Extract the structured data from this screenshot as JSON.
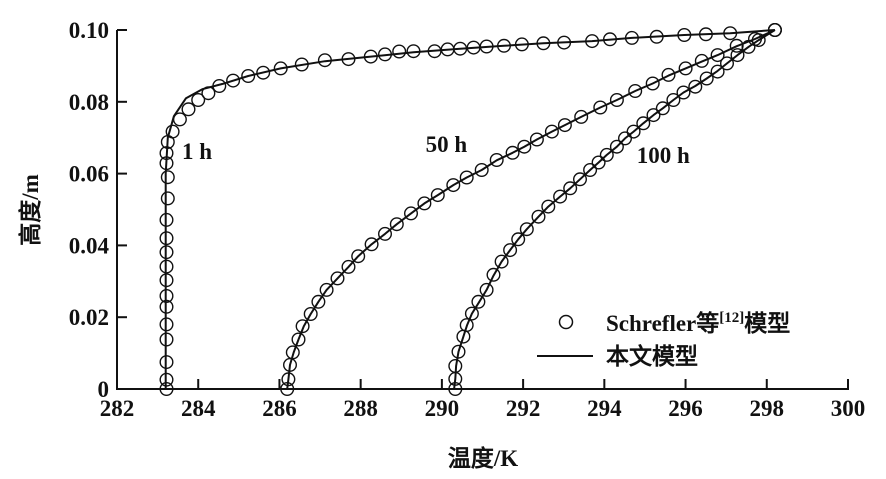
{
  "chart_data": {
    "type": "line",
    "title": "",
    "xlabel": "温度/K",
    "ylabel": "高度/m",
    "xlim": [
      282,
      300
    ],
    "ylim": [
      0,
      0.1
    ],
    "xticks": [
      "282",
      "284",
      "286",
      "288",
      "290",
      "292",
      "294",
      "296",
      "298",
      "300"
    ],
    "yticks": [
      "0",
      "0.02",
      "0.04",
      "0.06",
      "0.08",
      "0.10"
    ],
    "grid": false,
    "legend_position": "bottom-right",
    "legend": {
      "markers_label": "Schrefler等",
      "markers_ref": "[12]",
      "markers_suffix": "模型",
      "line_label": "本文模型"
    },
    "annotations": [
      {
        "text": "1 h",
        "x": 283.6,
        "y": 0.064
      },
      {
        "text": "50 h",
        "x": 289.6,
        "y": 0.066
      },
      {
        "text": "100 h",
        "x": 294.8,
        "y": 0.063
      }
    ],
    "series": [
      {
        "curve": "1 h",
        "model": [
          [
            283.2,
            0
          ],
          [
            283.2,
            0.03
          ],
          [
            283.2,
            0.06
          ],
          [
            283.25,
            0.07
          ],
          [
            283.4,
            0.076
          ],
          [
            283.7,
            0.081
          ],
          [
            284.1,
            0.0835
          ],
          [
            284.6,
            0.085
          ],
          [
            285.23,
            0.0872
          ],
          [
            286.03,
            0.0893
          ],
          [
            287.12,
            0.0913
          ],
          [
            288.25,
            0.0926
          ],
          [
            289.3,
            0.0938
          ],
          [
            290.45,
            0.0948
          ],
          [
            291.53,
            0.0956
          ],
          [
            292.5,
            0.0963
          ],
          [
            293.7,
            0.0969
          ],
          [
            294.68,
            0.0978
          ],
          [
            295.97,
            0.0986
          ],
          [
            297.1,
            0.0991
          ],
          [
            298.2,
            0.1
          ]
        ],
        "reference": [
          [
            283.22,
            0
          ],
          [
            283.22,
            0.0026
          ],
          [
            283.22,
            0.0075
          ],
          [
            283.22,
            0.0138
          ],
          [
            283.22,
            0.018
          ],
          [
            283.22,
            0.0229
          ],
          [
            283.22,
            0.0259
          ],
          [
            283.22,
            0.0303
          ],
          [
            283.22,
            0.0341
          ],
          [
            283.22,
            0.0381
          ],
          [
            283.22,
            0.042
          ],
          [
            283.22,
            0.0471
          ],
          [
            283.25,
            0.0531
          ],
          [
            283.25,
            0.059
          ],
          [
            283.22,
            0.0629
          ],
          [
            283.22,
            0.0657
          ],
          [
            283.25,
            0.0688
          ],
          [
            283.37,
            0.0717
          ],
          [
            283.55,
            0.0751
          ],
          [
            283.76,
            0.0779
          ],
          [
            284.0,
            0.0805
          ],
          [
            284.25,
            0.0824
          ],
          [
            284.52,
            0.0844
          ],
          [
            284.86,
            0.0859
          ],
          [
            285.23,
            0.0872
          ],
          [
            285.6,
            0.0881
          ],
          [
            286.03,
            0.0893
          ],
          [
            286.55,
            0.0904
          ],
          [
            287.12,
            0.0916
          ],
          [
            287.7,
            0.0919
          ],
          [
            288.25,
            0.0926
          ],
          [
            288.6,
            0.0932
          ],
          [
            288.95,
            0.094
          ],
          [
            289.3,
            0.0941
          ],
          [
            289.82,
            0.0941
          ],
          [
            290.14,
            0.0946
          ],
          [
            290.45,
            0.0948
          ],
          [
            290.78,
            0.0951
          ],
          [
            291.1,
            0.0954
          ],
          [
            291.53,
            0.0956
          ],
          [
            291.97,
            0.096
          ],
          [
            292.5,
            0.0963
          ],
          [
            293.01,
            0.0965
          ],
          [
            293.7,
            0.0969
          ],
          [
            294.14,
            0.0974
          ],
          [
            294.68,
            0.0978
          ],
          [
            295.29,
            0.0981
          ],
          [
            295.97,
            0.0986
          ],
          [
            296.5,
            0.0988
          ],
          [
            297.1,
            0.0991
          ],
          [
            298.2,
            0.1
          ]
        ]
      },
      {
        "curve": "50 h",
        "model": [
          [
            286.19,
            0
          ],
          [
            286.22,
            0.0027
          ],
          [
            286.26,
            0.0067
          ],
          [
            286.35,
            0.0102
          ],
          [
            286.47,
            0.0138
          ],
          [
            286.6,
            0.0175
          ],
          [
            286.77,
            0.0209
          ],
          [
            286.96,
            0.0243
          ],
          [
            287.16,
            0.0276
          ],
          [
            287.43,
            0.0308
          ],
          [
            287.7,
            0.034
          ],
          [
            287.94,
            0.037
          ],
          [
            288.27,
            0.0403
          ],
          [
            288.6,
            0.0432
          ],
          [
            288.89,
            0.0459
          ],
          [
            289.24,
            0.0489
          ],
          [
            289.57,
            0.0517
          ],
          [
            289.9,
            0.054
          ],
          [
            290.28,
            0.0568
          ],
          [
            290.61,
            0.0589
          ],
          [
            290.98,
            0.061
          ],
          [
            291.35,
            0.0637
          ],
          [
            291.74,
            0.0658
          ],
          [
            292.03,
            0.0675
          ],
          [
            292.34,
            0.0695
          ],
          [
            292.71,
            0.0717
          ],
          [
            293.03,
            0.0735
          ],
          [
            293.43,
            0.0758
          ],
          [
            293.9,
            0.0784
          ],
          [
            294.31,
            0.0805
          ],
          [
            294.76,
            0.083
          ],
          [
            295.19,
            0.0851
          ],
          [
            295.58,
            0.0873
          ],
          [
            296.0,
            0.0893
          ],
          [
            296.4,
            0.0912
          ],
          [
            296.79,
            0.093
          ],
          [
            297.26,
            0.0955
          ],
          [
            297.71,
            0.0975
          ],
          [
            298.2,
            0.1
          ]
        ],
        "reference": [
          [
            286.19,
            0
          ],
          [
            286.22,
            0.0027
          ],
          [
            286.26,
            0.0067
          ],
          [
            286.33,
            0.0102
          ],
          [
            286.47,
            0.0138
          ],
          [
            286.57,
            0.0175
          ],
          [
            286.77,
            0.0209
          ],
          [
            286.96,
            0.0243
          ],
          [
            287.16,
            0.0276
          ],
          [
            287.43,
            0.0308
          ],
          [
            287.7,
            0.034
          ],
          [
            287.94,
            0.037
          ],
          [
            288.27,
            0.0403
          ],
          [
            288.6,
            0.0432
          ],
          [
            288.89,
            0.0459
          ],
          [
            289.24,
            0.0489
          ],
          [
            289.57,
            0.0517
          ],
          [
            289.9,
            0.054
          ],
          [
            290.28,
            0.0568
          ],
          [
            290.61,
            0.0589
          ],
          [
            290.98,
            0.061
          ],
          [
            291.35,
            0.0638
          ],
          [
            291.74,
            0.0658
          ],
          [
            292.03,
            0.0675
          ],
          [
            292.34,
            0.0695
          ],
          [
            292.71,
            0.0717
          ],
          [
            293.03,
            0.0735
          ],
          [
            293.43,
            0.0758
          ],
          [
            293.9,
            0.0784
          ],
          [
            294.31,
            0.0805
          ],
          [
            294.76,
            0.083
          ],
          [
            295.19,
            0.0851
          ],
          [
            295.58,
            0.0875
          ],
          [
            296.0,
            0.0893
          ],
          [
            296.4,
            0.0914
          ],
          [
            296.79,
            0.093
          ],
          [
            297.26,
            0.0956
          ],
          [
            297.71,
            0.0975
          ],
          [
            298.2,
            0.1
          ]
        ]
      },
      {
        "curve": "100 h",
        "model": [
          [
            290.3,
            0
          ],
          [
            290.33,
            0.0028
          ],
          [
            290.35,
            0.0064
          ],
          [
            290.41,
            0.0104
          ],
          [
            290.53,
            0.0146
          ],
          [
            290.62,
            0.0178
          ],
          [
            290.74,
            0.021
          ],
          [
            290.92,
            0.0243
          ],
          [
            291.1,
            0.0276
          ],
          [
            291.27,
            0.0316
          ],
          [
            291.47,
            0.0355
          ],
          [
            291.68,
            0.0387
          ],
          [
            291.88,
            0.0417
          ],
          [
            292.09,
            0.0445
          ],
          [
            292.38,
            0.048
          ],
          [
            292.62,
            0.0508
          ],
          [
            292.91,
            0.0536
          ],
          [
            293.16,
            0.0559
          ],
          [
            293.4,
            0.0584
          ],
          [
            293.65,
            0.061
          ],
          [
            293.86,
            0.0631
          ],
          [
            294.06,
            0.0652
          ],
          [
            294.31,
            0.0675
          ],
          [
            294.51,
            0.0698
          ],
          [
            294.72,
            0.0717
          ],
          [
            294.96,
            0.074
          ],
          [
            295.21,
            0.0763
          ],
          [
            295.44,
            0.0782
          ],
          [
            295.7,
            0.0805
          ],
          [
            295.95,
            0.0826
          ],
          [
            296.24,
            0.0844
          ],
          [
            296.52,
            0.0865
          ],
          [
            296.79,
            0.0886
          ],
          [
            297.02,
            0.0907
          ],
          [
            297.28,
            0.093
          ],
          [
            297.55,
            0.0953
          ],
          [
            297.8,
            0.0972
          ],
          [
            298.2,
            0.1
          ]
        ],
        "reference": [
          [
            290.33,
            0
          ],
          [
            290.33,
            0.0028
          ],
          [
            290.33,
            0.0064
          ],
          [
            290.41,
            0.0104
          ],
          [
            290.53,
            0.0146
          ],
          [
            290.61,
            0.0178
          ],
          [
            290.74,
            0.021
          ],
          [
            290.9,
            0.0243
          ],
          [
            291.1,
            0.0276
          ],
          [
            291.27,
            0.0318
          ],
          [
            291.47,
            0.0355
          ],
          [
            291.68,
            0.0387
          ],
          [
            291.88,
            0.0417
          ],
          [
            292.09,
            0.0445
          ],
          [
            292.38,
            0.048
          ],
          [
            292.62,
            0.0508
          ],
          [
            292.91,
            0.0536
          ],
          [
            293.16,
            0.0559
          ],
          [
            293.4,
            0.0584
          ],
          [
            293.65,
            0.061
          ],
          [
            293.86,
            0.0631
          ],
          [
            294.06,
            0.0652
          ],
          [
            294.31,
            0.0675
          ],
          [
            294.51,
            0.0698
          ],
          [
            294.72,
            0.0717
          ],
          [
            294.96,
            0.074
          ],
          [
            295.21,
            0.0763
          ],
          [
            295.44,
            0.0782
          ],
          [
            295.7,
            0.0805
          ],
          [
            295.95,
            0.0826
          ],
          [
            296.24,
            0.0842
          ],
          [
            296.52,
            0.0865
          ],
          [
            296.79,
            0.0884
          ],
          [
            297.02,
            0.0907
          ],
          [
            297.28,
            0.093
          ],
          [
            297.55,
            0.0953
          ],
          [
            297.8,
            0.0972
          ],
          [
            298.2,
            0.1
          ]
        ]
      }
    ]
  }
}
